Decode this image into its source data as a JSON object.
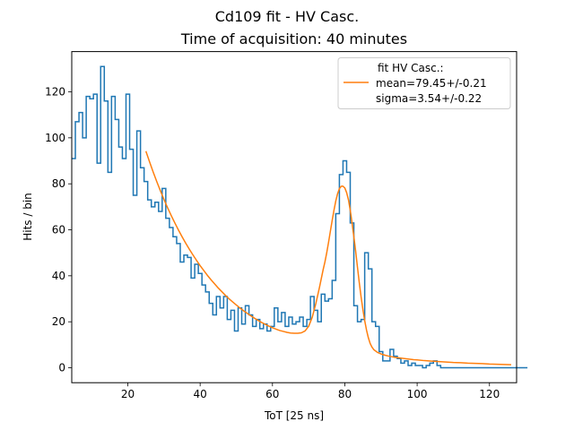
{
  "chart_data": {
    "type": "histogram",
    "title": "Cd109 fit - HV Casc.",
    "subtitle": "Time of acquisition: 40 minutes",
    "xlabel": "ToT [25 ns]",
    "ylabel": "Hits / bin",
    "xlim": [
      4.5,
      127.5
    ],
    "ylim": [
      -6.5,
      137.5
    ],
    "xticks": [
      20,
      40,
      60,
      80,
      100,
      120
    ],
    "yticks": [
      0,
      20,
      40,
      60,
      80,
      100,
      120
    ],
    "grid": false,
    "legend_position": "top-right",
    "colors": {
      "histogram": "#1f77b4",
      "fit": "#ff7f0e"
    },
    "histogram": {
      "name": "",
      "bin_width": 1,
      "x_start": 4.5,
      "values": [
        91,
        107,
        111,
        100,
        118,
        117,
        119,
        89,
        131,
        116,
        85,
        118,
        108,
        96,
        91,
        119,
        95,
        75,
        103,
        87,
        81,
        73,
        70,
        72,
        68,
        78,
        65,
        61,
        57,
        54,
        46,
        49,
        48,
        39,
        45,
        41,
        36,
        33,
        28,
        23,
        31,
        26,
        31,
        21,
        25,
        16,
        26,
        19,
        27,
        23,
        18,
        21,
        17,
        19,
        16,
        18,
        26,
        20,
        24,
        18,
        22,
        19,
        20,
        22,
        18,
        21,
        31,
        25,
        20,
        32,
        29,
        30,
        38,
        67,
        84,
        90,
        85,
        63,
        27,
        20,
        21,
        50,
        43,
        20,
        18,
        7,
        3,
        3,
        8,
        5,
        4,
        2,
        3,
        1,
        2,
        1,
        1,
        0,
        1,
        2,
        3,
        1,
        0,
        0,
        0,
        0,
        0,
        0,
        0,
        0,
        0,
        0,
        0,
        0,
        0,
        0,
        0,
        0,
        0,
        0,
        0,
        0,
        0,
        0,
        0,
        0
      ]
    },
    "fit": {
      "legend_title": "fit HV Casc.:",
      "legend_lines": [
        "mean=79.45+/-0.21",
        "sigma=3.54+/-0.22"
      ],
      "x": [
        25,
        26,
        27,
        28,
        29,
        30,
        31,
        32,
        33,
        34,
        35,
        36,
        37,
        38,
        39,
        40,
        41,
        42,
        43,
        44,
        45,
        46,
        47,
        48,
        49,
        50,
        51,
        52,
        53,
        54,
        55,
        56,
        57,
        58,
        59,
        60,
        61,
        62,
        63,
        64,
        65,
        66,
        67,
        68,
        69,
        70,
        71,
        72,
        73,
        74,
        74.5,
        75,
        75.5,
        76,
        76.5,
        77,
        77.5,
        78,
        78.5,
        79,
        79.45,
        80,
        80.5,
        81,
        81.5,
        82,
        82.5,
        83,
        83.5,
        84,
        84.5,
        85,
        85.5,
        86,
        86.5,
        87,
        87.5,
        88,
        89,
        90,
        91,
        92,
        93,
        94,
        95,
        96,
        97,
        98,
        99,
        100,
        102,
        104,
        106,
        108,
        110,
        112,
        114,
        116,
        118,
        120,
        122,
        124,
        126
      ],
      "y": [
        94.2,
        89.6,
        85.2,
        81.0,
        77.0,
        73.2,
        69.6,
        66.2,
        63.0,
        59.9,
        57.0,
        54.2,
        51.6,
        49.1,
        46.7,
        44.4,
        42.3,
        40.2,
        38.3,
        36.5,
        34.7,
        33.1,
        31.5,
        30.0,
        28.6,
        27.3,
        26.0,
        24.8,
        23.7,
        22.6,
        21.6,
        20.6,
        19.7,
        18.9,
        18.1,
        17.4,
        16.8,
        16.2,
        15.8,
        15.4,
        15.1,
        15.0,
        15.0,
        15.2,
        16.0,
        18.0,
        22.0,
        28.0,
        35.0,
        42.6,
        46.0,
        50.0,
        54.5,
        59.3,
        64.0,
        68.5,
        72.5,
        75.7,
        77.9,
        78.9,
        79.0,
        78.2,
        76.2,
        73.1,
        68.6,
        63.0,
        57.0,
        50.7,
        43.7,
        37.0,
        30.8,
        25.3,
        20.5,
        16.4,
        13.1,
        10.6,
        9.0,
        7.9,
        6.7,
        6.0,
        5.5,
        5.1,
        4.8,
        4.5,
        4.3,
        4.1,
        3.9,
        3.7,
        3.5,
        3.4,
        3.1,
        2.9,
        2.7,
        2.5,
        2.3,
        2.2,
        2.0,
        1.9,
        1.8,
        1.6,
        1.5,
        1.4,
        1.3
      ]
    }
  }
}
